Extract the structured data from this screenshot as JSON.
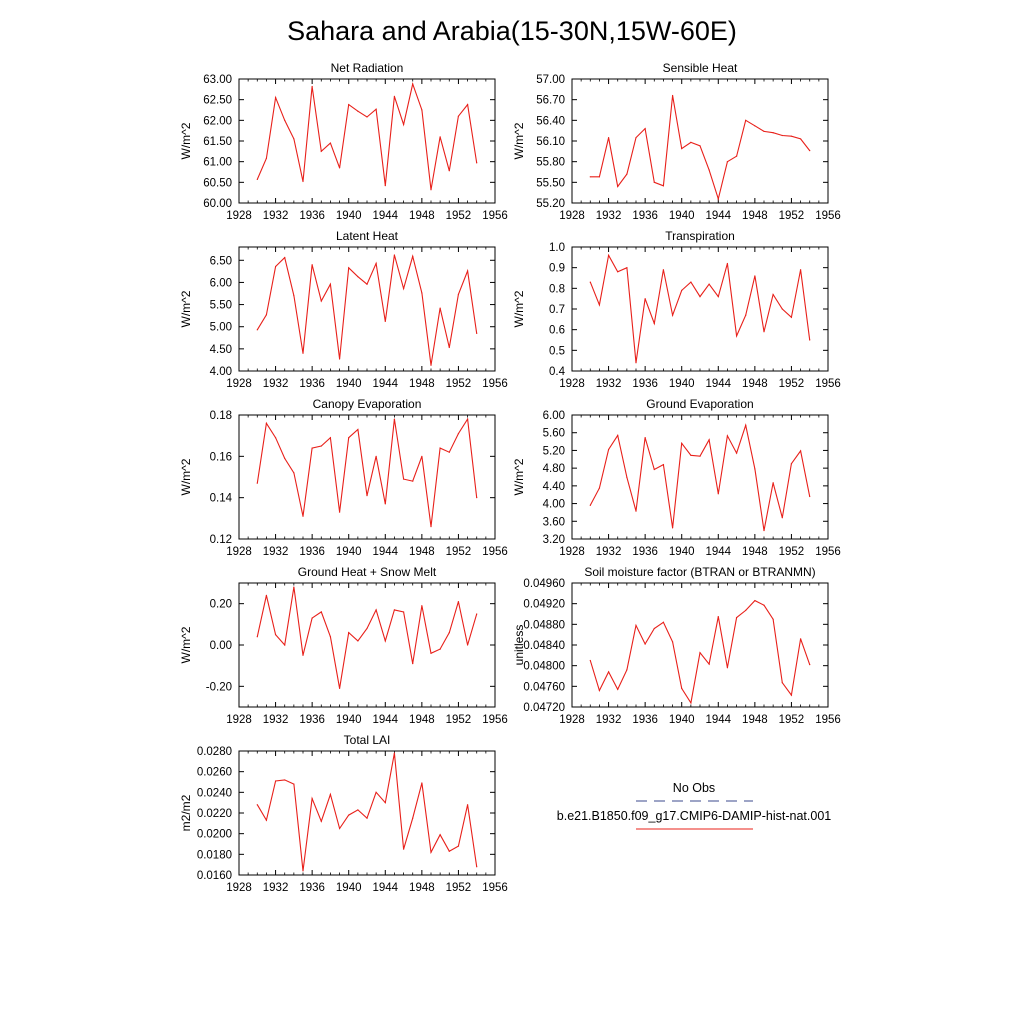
{
  "figure_title": "Sahara and Arabia(15-30N,15W-60E)",
  "legend": {
    "obs_label": "No Obs",
    "obs_color": "#3b4a8c",
    "model_label": "b.e21.B1850.f09_g17.CMIP6-DAMIP-hist-nat.001",
    "model_color": "#e8201a"
  },
  "chart_data": [
    {
      "type": "line",
      "title": "Net Radiation",
      "ylabel": "W/m^2",
      "xlim": [
        1928,
        1956
      ],
      "x_ticks": [
        1928,
        1932,
        1936,
        1940,
        1944,
        1948,
        1952,
        1956
      ],
      "ylim": [
        60.0,
        63.0
      ],
      "y_ticks": [
        "60.00",
        "60.50",
        "61.00",
        "61.50",
        "62.00",
        "62.50",
        "63.00"
      ],
      "grid": false,
      "x": [
        1930,
        1931,
        1932,
        1933,
        1934,
        1935,
        1936,
        1937,
        1938,
        1939,
        1940,
        1941,
        1942,
        1943,
        1944,
        1945,
        1946,
        1947,
        1948,
        1949,
        1950,
        1951,
        1952,
        1953,
        1954
      ],
      "values": [
        60.57,
        61.08,
        62.55,
        62.0,
        61.55,
        60.52,
        62.82,
        61.25,
        61.45,
        60.85,
        62.38,
        62.22,
        62.08,
        62.27,
        60.42,
        62.58,
        61.9,
        62.88,
        62.25,
        60.32,
        61.6,
        60.78,
        62.1,
        62.38,
        60.97
      ]
    },
    {
      "type": "line",
      "title": "Sensible Heat",
      "ylabel": "W/m^2",
      "xlim": [
        1928,
        1956
      ],
      "x_ticks": [
        1928,
        1932,
        1936,
        1940,
        1944,
        1948,
        1952,
        1956
      ],
      "ylim": [
        55.2,
        57.0
      ],
      "y_ticks": [
        "55.20",
        "55.50",
        "55.80",
        "56.10",
        "56.40",
        "56.70",
        "57.00"
      ],
      "grid": false,
      "x": [
        1930,
        1931,
        1932,
        1933,
        1934,
        1935,
        1936,
        1937,
        1938,
        1939,
        1940,
        1941,
        1942,
        1943,
        1944,
        1945,
        1946,
        1947,
        1948,
        1949,
        1950,
        1951,
        1952,
        1953,
        1954
      ],
      "values": [
        55.58,
        55.58,
        56.15,
        55.44,
        55.62,
        56.15,
        56.28,
        55.5,
        55.45,
        56.76,
        55.99,
        56.08,
        56.03,
        55.68,
        55.26,
        55.8,
        55.88,
        56.4,
        56.32,
        56.24,
        56.22,
        56.18,
        56.17,
        56.13,
        55.96
      ]
    },
    {
      "type": "line",
      "title": "Latent Heat",
      "ylabel": "W/m^2",
      "xlim": [
        1928,
        1956
      ],
      "x_ticks": [
        1928,
        1932,
        1936,
        1940,
        1944,
        1948,
        1952,
        1956
      ],
      "ylim": [
        4.0,
        6.8
      ],
      "y_ticks": [
        "4.00",
        "4.50",
        "5.00",
        "5.50",
        "6.00",
        "6.50"
      ],
      "y_tick_values": [
        4.0,
        4.5,
        5.0,
        5.5,
        6.0,
        6.5
      ],
      "grid": false,
      "x": [
        1930,
        1931,
        1932,
        1933,
        1934,
        1935,
        1936,
        1937,
        1938,
        1939,
        1940,
        1941,
        1942,
        1943,
        1944,
        1945,
        1946,
        1947,
        1948,
        1949,
        1950,
        1951,
        1952,
        1953,
        1954
      ],
      "values": [
        4.93,
        5.27,
        6.36,
        6.56,
        5.7,
        4.4,
        6.4,
        5.58,
        5.96,
        4.27,
        6.33,
        6.13,
        5.96,
        6.43,
        5.12,
        6.62,
        5.86,
        6.59,
        5.76,
        4.13,
        5.42,
        4.53,
        5.73,
        6.26,
        4.85
      ]
    },
    {
      "type": "line",
      "title": "Transpiration",
      "ylabel": "W/m^2",
      "xlim": [
        1928,
        1956
      ],
      "x_ticks": [
        1928,
        1932,
        1936,
        1940,
        1944,
        1948,
        1952,
        1956
      ],
      "ylim": [
        0.4,
        1.0
      ],
      "y_ticks": [
        "0.4",
        "0.5",
        "0.6",
        "0.7",
        "0.8",
        "0.9",
        "1.0"
      ],
      "grid": false,
      "x": [
        1930,
        1931,
        1932,
        1933,
        1934,
        1935,
        1936,
        1937,
        1938,
        1939,
        1940,
        1941,
        1942,
        1943,
        1944,
        1945,
        1946,
        1947,
        1948,
        1949,
        1950,
        1951,
        1952,
        1953,
        1954
      ],
      "values": [
        0.83,
        0.72,
        0.96,
        0.88,
        0.9,
        0.44,
        0.75,
        0.63,
        0.89,
        0.67,
        0.79,
        0.83,
        0.76,
        0.82,
        0.76,
        0.92,
        0.57,
        0.67,
        0.86,
        0.59,
        0.77,
        0.7,
        0.66,
        0.89,
        0.55
      ]
    },
    {
      "type": "line",
      "title": "Canopy Evaporation",
      "ylabel": "W/m^2",
      "xlim": [
        1928,
        1956
      ],
      "x_ticks": [
        1928,
        1932,
        1936,
        1940,
        1944,
        1948,
        1952,
        1956
      ],
      "ylim": [
        0.12,
        0.18
      ],
      "y_ticks": [
        "0.12",
        "0.14",
        "0.16",
        "0.18"
      ],
      "grid": false,
      "x": [
        1930,
        1931,
        1932,
        1933,
        1934,
        1935,
        1936,
        1937,
        1938,
        1939,
        1940,
        1941,
        1942,
        1943,
        1944,
        1945,
        1946,
        1947,
        1948,
        1949,
        1950,
        1951,
        1952,
        1953,
        1954
      ],
      "values": [
        0.147,
        0.176,
        0.169,
        0.159,
        0.152,
        0.131,
        0.164,
        0.165,
        0.169,
        0.133,
        0.169,
        0.173,
        0.141,
        0.16,
        0.137,
        0.178,
        0.149,
        0.148,
        0.16,
        0.126,
        0.164,
        0.162,
        0.171,
        0.178,
        0.14
      ]
    },
    {
      "type": "line",
      "title": "Ground Evaporation",
      "ylabel": "W/m^2",
      "xlim": [
        1928,
        1956
      ],
      "x_ticks": [
        1928,
        1932,
        1936,
        1940,
        1944,
        1948,
        1952,
        1956
      ],
      "ylim": [
        3.2,
        6.0
      ],
      "y_ticks": [
        "3.20",
        "3.60",
        "4.00",
        "4.40",
        "4.80",
        "5.20",
        "5.60",
        "6.00"
      ],
      "grid": false,
      "x": [
        1930,
        1931,
        1932,
        1933,
        1934,
        1935,
        1936,
        1937,
        1938,
        1939,
        1940,
        1941,
        1942,
        1943,
        1944,
        1945,
        1946,
        1947,
        1948,
        1949,
        1950,
        1951,
        1952,
        1953,
        1954
      ],
      "values": [
        3.96,
        4.35,
        5.22,
        5.54,
        4.59,
        3.83,
        5.49,
        4.77,
        4.88,
        3.45,
        5.36,
        5.09,
        5.07,
        5.44,
        4.22,
        5.53,
        5.14,
        5.77,
        4.78,
        3.39,
        4.47,
        3.68,
        4.9,
        5.19,
        4.16
      ]
    },
    {
      "type": "line",
      "title": "Ground Heat + Snow Melt",
      "ylabel": "W/m^2",
      "xlim": [
        1928,
        1956
      ],
      "x_ticks": [
        1928,
        1932,
        1936,
        1940,
        1944,
        1948,
        1952,
        1956
      ],
      "ylim": [
        -0.3,
        0.3
      ],
      "y_ticks": [
        "-0.20",
        "0.00",
        "0.20"
      ],
      "y_tick_values": [
        -0.2,
        0.0,
        0.2
      ],
      "grid": false,
      "x": [
        1930,
        1931,
        1932,
        1933,
        1934,
        1935,
        1936,
        1937,
        1938,
        1939,
        1940,
        1941,
        1942,
        1943,
        1944,
        1945,
        1946,
        1947,
        1948,
        1949,
        1950,
        1951,
        1952,
        1953,
        1954
      ],
      "values": [
        0.04,
        0.24,
        0.05,
        0.0,
        0.28,
        -0.05,
        0.13,
        0.16,
        0.04,
        -0.21,
        0.06,
        0.02,
        0.08,
        0.17,
        0.02,
        0.17,
        0.16,
        -0.09,
        0.19,
        -0.04,
        -0.02,
        0.06,
        0.21,
        0.0,
        0.15
      ]
    },
    {
      "type": "line",
      "title": "Soil moisture factor (BTRAN or BTRANMN)",
      "ylabel": "unitless",
      "xlim": [
        1928,
        1956
      ],
      "x_ticks": [
        1928,
        1932,
        1936,
        1940,
        1944,
        1948,
        1952,
        1956
      ],
      "ylim": [
        0.0472,
        0.0496
      ],
      "y_ticks": [
        "0.04720",
        "0.04760",
        "0.04800",
        "0.04840",
        "0.04880",
        "0.04920",
        "0.04960"
      ],
      "grid": false,
      "x": [
        1930,
        1931,
        1932,
        1933,
        1934,
        1935,
        1936,
        1937,
        1938,
        1939,
        1940,
        1941,
        1942,
        1943,
        1944,
        1945,
        1946,
        1947,
        1948,
        1949,
        1950,
        1951,
        1952,
        1953,
        1954
      ],
      "values": [
        0.0481,
        0.04752,
        0.04788,
        0.04754,
        0.04792,
        0.04878,
        0.04842,
        0.04872,
        0.04884,
        0.04846,
        0.04756,
        0.04728,
        0.04825,
        0.04803,
        0.04895,
        0.04796,
        0.04893,
        0.04907,
        0.04926,
        0.04917,
        0.0489,
        0.04767,
        0.04743,
        0.04852,
        0.04802
      ]
    },
    {
      "type": "line",
      "title": "Total LAI",
      "ylabel": "m2/m2",
      "xlim": [
        1928,
        1956
      ],
      "x_ticks": [
        1928,
        1932,
        1936,
        1940,
        1944,
        1948,
        1952,
        1956
      ],
      "ylim": [
        0.016,
        0.028
      ],
      "y_ticks": [
        "0.0160",
        "0.0180",
        "0.0200",
        "0.0220",
        "0.0240",
        "0.0260",
        "0.0280"
      ],
      "grid": false,
      "x": [
        1930,
        1931,
        1932,
        1933,
        1934,
        1935,
        1936,
        1937,
        1938,
        1939,
        1940,
        1941,
        1942,
        1943,
        1944,
        1945,
        1946,
        1947,
        1948,
        1949,
        1950,
        1951,
        1952,
        1953,
        1954
      ],
      "values": [
        0.0228,
        0.0213,
        0.0251,
        0.0252,
        0.0248,
        0.0164,
        0.0234,
        0.0212,
        0.0238,
        0.0205,
        0.0218,
        0.0223,
        0.0215,
        0.024,
        0.023,
        0.0278,
        0.0185,
        0.0215,
        0.0249,
        0.0182,
        0.0199,
        0.0183,
        0.0188,
        0.0228,
        0.0168
      ]
    }
  ]
}
